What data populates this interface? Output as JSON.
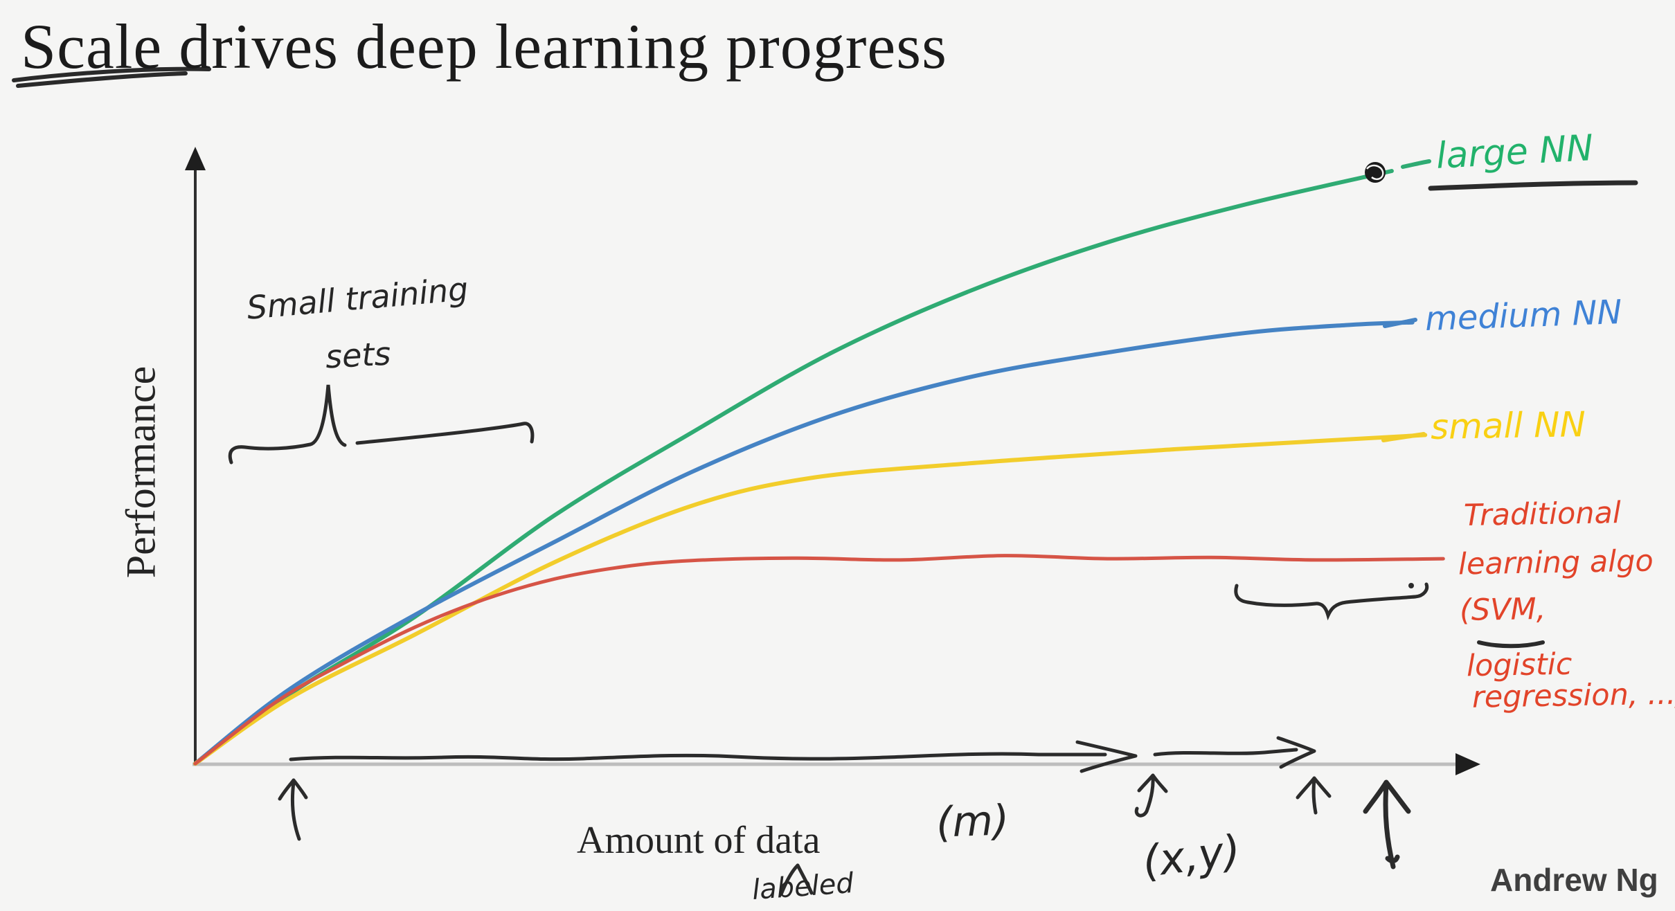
{
  "title": {
    "underlined": "Scale",
    "rest": " drives deep learning progress"
  },
  "axes": {
    "y_label": "Performance",
    "x_label": "Amount of data",
    "x_unit_note": "(m)",
    "x_sub_note": "labeled"
  },
  "annotations": {
    "small_training_sets_line1": "Small training",
    "small_training_sets_line2": "sets",
    "xy_pair": "(x,y)",
    "author": "Andrew Ng"
  },
  "legend": {
    "large_nn": {
      "text": "large NN",
      "color": "#22b26b"
    },
    "medium_nn": {
      "text": "medium NN",
      "color": "#3f82d6"
    },
    "small_nn": {
      "text": "small NN",
      "color": "#f9d013"
    },
    "traditional": {
      "color": "#e2442a",
      "lines": [
        "Traditional",
        "learning algo",
        "(SVM,",
        "logistic",
        "regression, ...)"
      ]
    }
  },
  "chart_data": {
    "type": "line",
    "title": "Scale drives deep learning progress",
    "xlabel": "Amount of data (m, labeled examples)",
    "ylabel": "Performance",
    "x_range_normalized": [
      0,
      1
    ],
    "y_range_normalized": [
      0,
      1
    ],
    "grid": false,
    "axis_ticks": "none (conceptual sketch, unlabeled axes)",
    "legend_position": "handwritten labels at right end of each curve",
    "series": [
      {
        "id": "large-nn",
        "name": "large NN",
        "color": "#2fab73",
        "stroke_width": 6,
        "points": [
          [
            0,
            0.001
          ],
          [
            0.074,
            0.115
          ],
          [
            0.171,
            0.24
          ],
          [
            0.279,
            0.404
          ],
          [
            0.386,
            0.539
          ],
          [
            0.494,
            0.668
          ],
          [
            0.602,
            0.769
          ],
          [
            0.709,
            0.848
          ],
          [
            0.817,
            0.91
          ],
          [
            0.93,
            0.964
          ]
        ]
      },
      {
        "id": "medium-nn",
        "name": "medium NN",
        "color": "#4583c4",
        "stroke_width": 6,
        "points": [
          [
            0,
            0.001
          ],
          [
            0.074,
            0.123
          ],
          [
            0.171,
            0.243
          ],
          [
            0.279,
            0.361
          ],
          [
            0.386,
            0.475
          ],
          [
            0.494,
            0.566
          ],
          [
            0.602,
            0.629
          ],
          [
            0.709,
            0.669
          ],
          [
            0.817,
            0.701
          ],
          [
            0.898,
            0.714
          ],
          [
            0.946,
            0.718
          ]
        ]
      },
      {
        "id": "small-nn",
        "name": "small NN",
        "color": "#f2cd2b",
        "stroke_width": 6,
        "points": [
          [
            0,
            0.001
          ],
          [
            0.074,
            0.108
          ],
          [
            0.171,
            0.211
          ],
          [
            0.279,
            0.328
          ],
          [
            0.386,
            0.42
          ],
          [
            0.478,
            0.465
          ],
          [
            0.602,
            0.489
          ],
          [
            0.763,
            0.512
          ],
          [
            0.871,
            0.525
          ],
          [
            0.956,
            0.535
          ]
        ]
      },
      {
        "id": "traditional",
        "name": "Traditional learning algo (SVM, logistic regression, ...)",
        "color": "#d65446",
        "stroke_width": 5,
        "points": [
          [
            0,
            0.001
          ],
          [
            0.064,
            0.103
          ],
          [
            0.117,
            0.166
          ],
          [
            0.171,
            0.223
          ],
          [
            0.225,
            0.268
          ],
          [
            0.279,
            0.301
          ],
          [
            0.333,
            0.321
          ],
          [
            0.386,
            0.331
          ],
          [
            0.467,
            0.335
          ],
          [
            0.548,
            0.332
          ],
          [
            0.629,
            0.339
          ],
          [
            0.709,
            0.334
          ],
          [
            0.79,
            0.336
          ],
          [
            0.871,
            0.332
          ],
          [
            0.97,
            0.334
          ]
        ]
      }
    ]
  }
}
